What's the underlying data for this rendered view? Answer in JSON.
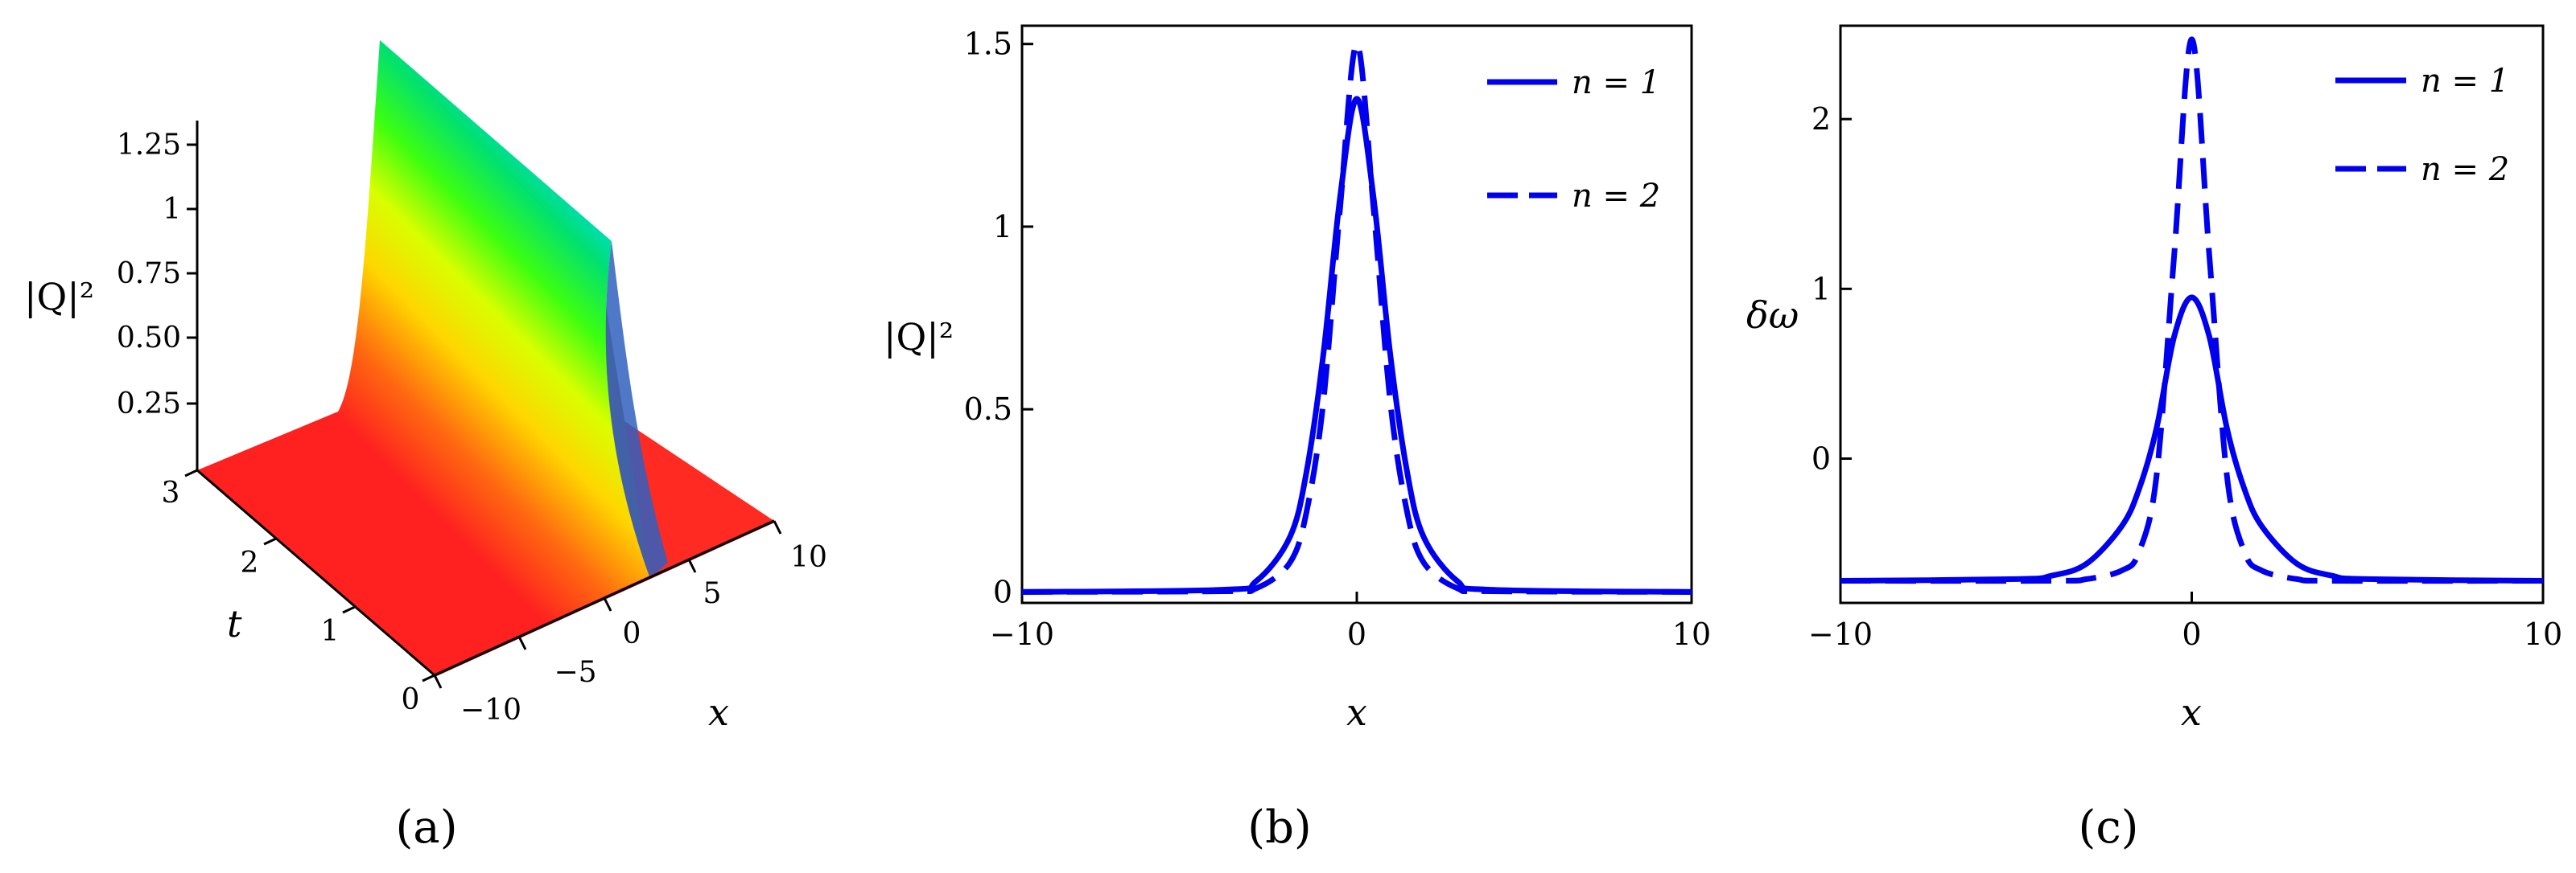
{
  "chart_data": [
    {
      "panel": "a",
      "panel_label": "(a)",
      "type": "surface3d",
      "zlabel": "|Q|²",
      "xlabel": "x",
      "ylabel": "t",
      "x_ticks": [
        "−10",
        "−5",
        "0",
        "5",
        "10"
      ],
      "t_ticks": [
        "0",
        "1",
        "2",
        "3"
      ],
      "z_ticks": [
        "0.25",
        "0.50",
        "0.75",
        "1",
        "1.25"
      ],
      "xlim": [
        -10,
        10
      ],
      "tlim": [
        0,
        3
      ],
      "peak": 1.35,
      "colormap": "rainbow"
    },
    {
      "panel": "b",
      "panel_label": "(b)",
      "type": "line",
      "xlabel": "x",
      "ylabel": "|Q|²",
      "xlim": [
        -10,
        10
      ],
      "ylim": [
        -0.03,
        1.55
      ],
      "x_ticks": [
        "−10",
        "0",
        "10"
      ],
      "y_ticks": [
        "0",
        "0.5",
        "1",
        "1.5"
      ],
      "legend_position": "top-right",
      "series": [
        {
          "name": "n = 1",
          "style": "solid",
          "color": "#0000ee",
          "x": [
            -10,
            -4,
            -3,
            -2,
            -1.5,
            -1,
            -0.5,
            0,
            0.5,
            1,
            1.5,
            2,
            3,
            4,
            10
          ],
          "y": [
            0,
            0.006,
            0.03,
            0.15,
            0.33,
            0.65,
            1.08,
            1.35,
            1.08,
            0.65,
            0.33,
            0.15,
            0.03,
            0.006,
            0
          ]
        },
        {
          "name": "n = 2",
          "style": "dashed",
          "color": "#0000ee",
          "x": [
            -10,
            -4,
            -3,
            -2,
            -1.5,
            -1,
            -0.5,
            0,
            0.5,
            1,
            1.5,
            2,
            3,
            4,
            10
          ],
          "y": [
            0,
            0.002,
            0.01,
            0.08,
            0.22,
            0.52,
            1.05,
            1.5,
            1.05,
            0.52,
            0.22,
            0.08,
            0.01,
            0.002,
            0
          ]
        }
      ]
    },
    {
      "panel": "c",
      "panel_label": "(c)",
      "type": "line",
      "xlabel": "x",
      "ylabel": "δω",
      "xlim": [
        -10,
        10
      ],
      "ylim": [
        -0.85,
        2.55
      ],
      "x_ticks": [
        "−10",
        "0",
        "10"
      ],
      "y_ticks": [
        "0",
        "1",
        "2"
      ],
      "legend_position": "top-right",
      "series": [
        {
          "name": "n = 1",
          "style": "solid",
          "color": "#0000ee",
          "x": [
            -10,
            -5,
            -4,
            -3,
            -2,
            -1.5,
            -1,
            -0.5,
            0,
            0.5,
            1,
            1.5,
            2,
            3,
            4,
            5,
            10
          ],
          "y": [
            -0.72,
            -0.71,
            -0.69,
            -0.62,
            -0.4,
            -0.18,
            0.18,
            0.72,
            0.95,
            0.72,
            0.18,
            -0.18,
            -0.4,
            -0.62,
            -0.69,
            -0.71,
            -0.72
          ]
        },
        {
          "name": "n = 2",
          "style": "dashed",
          "color": "#0000ee",
          "x": [
            -10,
            -4,
            -3,
            -2,
            -1.5,
            -1,
            -0.5,
            0,
            0.5,
            1,
            1.5,
            2,
            3,
            4,
            10
          ],
          "y": [
            -0.72,
            -0.72,
            -0.71,
            -0.66,
            -0.55,
            -0.1,
            1.2,
            2.47,
            1.2,
            -0.1,
            -0.55,
            -0.66,
            -0.71,
            -0.72,
            -0.72
          ]
        }
      ]
    }
  ]
}
